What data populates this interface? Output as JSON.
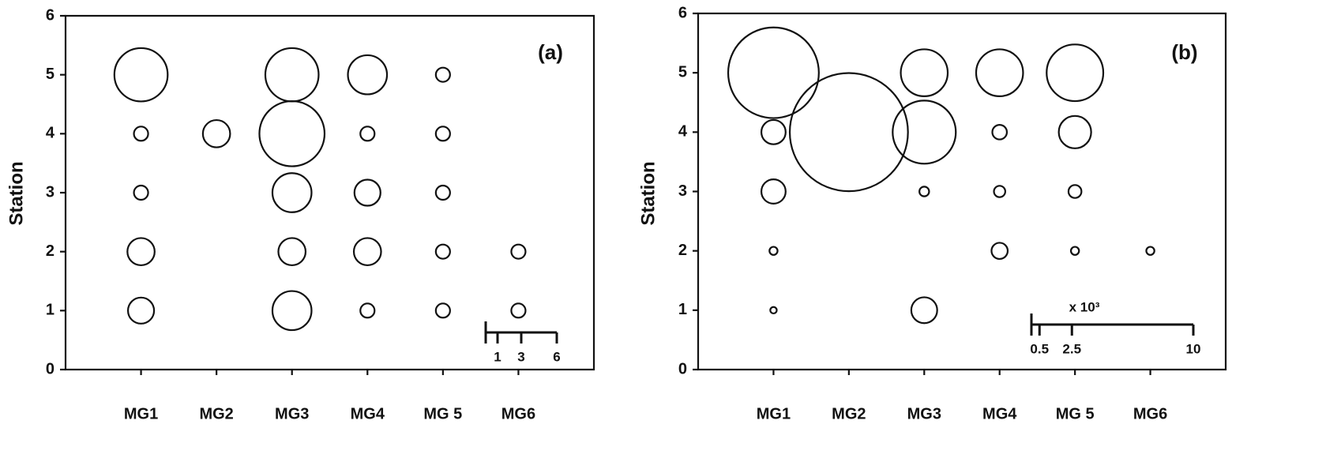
{
  "chart_data": [
    {
      "type": "bubble",
      "label": "(a)",
      "y_label": "Station",
      "xlim": [
        0,
        7
      ],
      "ylim": [
        0,
        6
      ],
      "xticks": [
        {
          "value": 1,
          "label": "MG1"
        },
        {
          "value": 2,
          "label": "MG2"
        },
        {
          "value": 3,
          "label": "MG3"
        },
        {
          "value": 4,
          "label": "MG4"
        },
        {
          "value": 5,
          "label": "MG 5"
        },
        {
          "value": 6,
          "label": "MG6"
        }
      ],
      "yticks": [
        0,
        1,
        2,
        3,
        4,
        5,
        6
      ],
      "x": [
        1,
        1,
        1,
        1,
        1,
        2,
        3,
        3,
        3,
        3,
        3,
        4,
        4,
        4,
        4,
        4,
        5,
        5,
        5,
        5,
        5,
        6,
        6
      ],
      "y": [
        5,
        4,
        3,
        2,
        1,
        4,
        5,
        4,
        3,
        2,
        1,
        5,
        4,
        3,
        2,
        1,
        5,
        4,
        3,
        2,
        1,
        2,
        1
      ],
      "sizes": [
        4.5,
        1.2,
        1.2,
        2.3,
        2.2,
        2.3,
        4.5,
        5.5,
        3.3,
        2.3,
        3.3,
        3.3,
        1.2,
        2.2,
        2.3,
        1.2,
        1.2,
        1.2,
        1.2,
        1.2,
        1.2,
        1.2,
        1.2
      ],
      "size_ticks": [
        1,
        3,
        6
      ]
    },
    {
      "type": "bubble",
      "label": "(b)",
      "y_label": "Station",
      "size_note": "x 10³",
      "xlim": [
        0,
        7
      ],
      "ylim": [
        0,
        6
      ],
      "xticks": [
        {
          "value": 1,
          "label": "MG1"
        },
        {
          "value": 2,
          "label": "MG2"
        },
        {
          "value": 3,
          "label": "MG3"
        },
        {
          "value": 4,
          "label": "MG4"
        },
        {
          "value": 5,
          "label": "MG 5"
        },
        {
          "value": 6,
          "label": "MG6"
        }
      ],
      "yticks": [
        0,
        1,
        2,
        3,
        4,
        5,
        6
      ],
      "x": [
        1,
        1,
        1,
        1,
        1,
        2,
        3,
        3,
        3,
        3,
        4,
        4,
        4,
        4,
        5,
        5,
        5,
        5,
        6
      ],
      "y": [
        5,
        4,
        3,
        2,
        1,
        4,
        5,
        4,
        3,
        1,
        5,
        4,
        3,
        2,
        5,
        4,
        3,
        2,
        2
      ],
      "sizes": [
        5.6,
        1.5,
        1.5,
        0.5,
        0.4,
        7.3,
        2.9,
        3.9,
        0.6,
        1.6,
        2.9,
        0.9,
        0.7,
        1.0,
        3.5,
        2.0,
        0.8,
        0.5,
        0.5
      ],
      "size_ticks": [
        0.5,
        2.5,
        10
      ]
    }
  ]
}
